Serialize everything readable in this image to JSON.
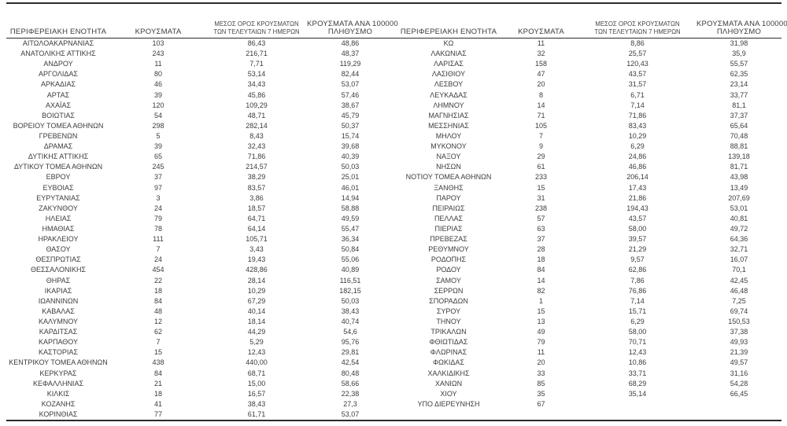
{
  "table": {
    "headers": {
      "region": "ΠΕΡΙΦΕΡΕΙΑΚΗ ΕΝΟΤΗΤΑ",
      "cases": "ΚΡΟΥΣΜΑΤΑ",
      "avg7_line1": "ΜΕΣΟΣ ΟΡΟΣ ΚΡΟΥΣΜΑΤΩΝ",
      "avg7_line2": "ΤΩΝ ΤΕΛΕΥΤΑΙΩΝ 7 ΗΜΕΡΩΝ",
      "per100k_line1": "ΚΡΟΥΣΜΑΤΑ ΑΝΑ 100000",
      "per100k_line2": "ΠΛΗΘΥΣΜΟ"
    },
    "left_rows": [
      [
        "ΑΙΤΩΛΟΑΚΑΡΝΑΝΙΑΣ",
        "103",
        "86,43",
        "48,86"
      ],
      [
        "ΑΝΑΤΟΛΙΚΗΣ ΑΤΤΙΚΗΣ",
        "243",
        "216,71",
        "48,37"
      ],
      [
        "ΑΝΔΡΟΥ",
        "11",
        "7,71",
        "119,29"
      ],
      [
        "ΑΡΓΟΛΙΔΑΣ",
        "80",
        "53,14",
        "82,44"
      ],
      [
        "ΑΡΚΑΔΙΑΣ",
        "46",
        "34,43",
        "53,07"
      ],
      [
        "ΑΡΤΑΣ",
        "39",
        "45,86",
        "57,46"
      ],
      [
        "ΑΧΑΪΑΣ",
        "120",
        "109,29",
        "38,67"
      ],
      [
        "ΒΟΙΩΤΙΑΣ",
        "54",
        "48,71",
        "45,79"
      ],
      [
        "ΒΟΡΕΙΟΥ ΤΟΜΕΑ ΑΘΗΝΩΝ",
        "298",
        "282,14",
        "50,37"
      ],
      [
        "ΓΡΕΒΕΝΩΝ",
        "5",
        "8,43",
        "15,74"
      ],
      [
        "ΔΡΑΜΑΣ",
        "39",
        "32,43",
        "39,68"
      ],
      [
        "ΔΥΤΙΚΗΣ ΑΤΤΙΚΗΣ",
        "65",
        "71,86",
        "40,39"
      ],
      [
        "ΔΥΤΙΚΟΥ ΤΟΜΕΑ ΑΘΗΝΩΝ",
        "245",
        "214,57",
        "50,03"
      ],
      [
        "ΕΒΡΟΥ",
        "37",
        "38,29",
        "25,01"
      ],
      [
        "ΕΥΒΟΙΑΣ",
        "97",
        "83,57",
        "46,01"
      ],
      [
        "ΕΥΡΥΤΑΝΙΑΣ",
        "3",
        "3,86",
        "14,94"
      ],
      [
        "ΖΑΚΥΝΘΟΥ",
        "24",
        "18,57",
        "58,88"
      ],
      [
        "ΗΛΕΙΑΣ",
        "79",
        "64,71",
        "49,59"
      ],
      [
        "ΗΜΑΘΙΑΣ",
        "78",
        "64,14",
        "55,47"
      ],
      [
        "ΗΡΑΚΛΕΙΟΥ",
        "111",
        "105,71",
        "36,34"
      ],
      [
        "ΘΑΣΟΥ",
        "7",
        "3,43",
        "50,84"
      ],
      [
        "ΘΕΣΠΡΩΤΙΑΣ",
        "24",
        "19,43",
        "55,06"
      ],
      [
        "ΘΕΣΣΑΛΟΝΙΚΗΣ",
        "454",
        "428,86",
        "40,89"
      ],
      [
        "ΘΗΡΑΣ",
        "22",
        "28,14",
        "116,51"
      ],
      [
        "ΙΚΑΡΙΑΣ",
        "18",
        "10,29",
        "182,15"
      ],
      [
        "ΙΩΑΝΝΙΝΩΝ",
        "84",
        "67,29",
        "50,03"
      ],
      [
        "ΚΑΒΑΛΑΣ",
        "48",
        "40,14",
        "38,43"
      ],
      [
        "ΚΑΛΥΜΝΟΥ",
        "12",
        "18,14",
        "40,74"
      ],
      [
        "ΚΑΡΔΙΤΣΑΣ",
        "62",
        "44,29",
        "54,6"
      ],
      [
        "ΚΑΡΠΑΘΟΥ",
        "7",
        "5,29",
        "95,76"
      ],
      [
        "ΚΑΣΤΟΡΙΑΣ",
        "15",
        "12,43",
        "29,81"
      ],
      [
        "ΚΕΝΤΡΙΚΟΥ ΤΟΜΕΑ ΑΘΗΝΩΝ",
        "438",
        "440,00",
        "42,54"
      ],
      [
        "ΚΕΡΚΥΡΑΣ",
        "84",
        "68,71",
        "80,48"
      ],
      [
        "ΚΕΦΑΛΛΗΝΙΑΣ",
        "21",
        "15,00",
        "58,66"
      ],
      [
        "ΚΙΛΚΙΣ",
        "18",
        "16,57",
        "22,38"
      ],
      [
        "ΚΟΖΑΝΗΣ",
        "41",
        "38,43",
        "27,3"
      ],
      [
        "ΚΟΡΙΝΘΙΑΣ",
        "77",
        "61,71",
        "53,07"
      ]
    ],
    "right_rows": [
      [
        "ΚΩ",
        "11",
        "8,86",
        "31,98"
      ],
      [
        "ΛΑΚΩΝΙΑΣ",
        "32",
        "25,57",
        "35,9"
      ],
      [
        "ΛΑΡΙΣΑΣ",
        "158",
        "120,43",
        "55,57"
      ],
      [
        "ΛΑΣΙΘΙΟΥ",
        "47",
        "43,57",
        "62,35"
      ],
      [
        "ΛΕΣΒΟΥ",
        "20",
        "31,57",
        "23,14"
      ],
      [
        "ΛΕΥΚΑΔΑΣ",
        "8",
        "6,71",
        "33,77"
      ],
      [
        "ΛΗΜΝΟΥ",
        "14",
        "7,14",
        "81,1"
      ],
      [
        "ΜΑΓΝΗΣΙΑΣ",
        "71",
        "71,86",
        "37,37"
      ],
      [
        "ΜΕΣΣΗΝΙΑΣ",
        "105",
        "83,43",
        "65,64"
      ],
      [
        "ΜΗΛΟΥ",
        "7",
        "10,29",
        "70,48"
      ],
      [
        "ΜΥΚΟΝΟΥ",
        "9",
        "6,29",
        "88,81"
      ],
      [
        "ΝΑΞΟΥ",
        "29",
        "24,86",
        "139,18"
      ],
      [
        "ΝΗΣΩΝ",
        "61",
        "46,86",
        "81,71"
      ],
      [
        "ΝΟΤΙΟΥ ΤΟΜΕΑ ΑΘΗΝΩΝ",
        "233",
        "206,14",
        "43,98"
      ],
      [
        "ΞΑΝΘΗΣ",
        "15",
        "17,43",
        "13,49"
      ],
      [
        "ΠΑΡΟΥ",
        "31",
        "21,86",
        "207,69"
      ],
      [
        "ΠΕΙΡΑΙΩΣ",
        "238",
        "194,43",
        "53,01"
      ],
      [
        "ΠΕΛΛΑΣ",
        "57",
        "43,57",
        "40,81"
      ],
      [
        "ΠΙΕΡΙΑΣ",
        "63",
        "58,00",
        "49,72"
      ],
      [
        "ΠΡΕΒΕΖΑΣ",
        "37",
        "39,57",
        "64,36"
      ],
      [
        "ΡΕΘΥΜΝΟΥ",
        "28",
        "21,29",
        "32,71"
      ],
      [
        "ΡΟΔΟΠΗΣ",
        "18",
        "9,57",
        "16,07"
      ],
      [
        "ΡΟΔΟΥ",
        "84",
        "62,86",
        "70,1"
      ],
      [
        "ΣΑΜΟΥ",
        "14",
        "7,86",
        "42,45"
      ],
      [
        "ΣΕΡΡΩΝ",
        "82",
        "76,86",
        "46,48"
      ],
      [
        "ΣΠΟΡΑΔΩΝ",
        "1",
        "7,14",
        "7,25"
      ],
      [
        "ΣΥΡΟΥ",
        "15",
        "15,71",
        "69,74"
      ],
      [
        "ΤΗΝΟΥ",
        "13",
        "6,29",
        "150,53"
      ],
      [
        "ΤΡΙΚΑΛΩΝ",
        "49",
        "58,00",
        "37,38"
      ],
      [
        "ΦΘΙΩΤΙΔΑΣ",
        "79",
        "70,71",
        "49,93"
      ],
      [
        "ΦΛΩΡΙΝΑΣ",
        "11",
        "12,43",
        "21,39"
      ],
      [
        "ΦΩΚΙΔΑΣ",
        "20",
        "10,86",
        "49,57"
      ],
      [
        "ΧΑΛΚΙΔΙΚΗΣ",
        "33",
        "33,71",
        "31,16"
      ],
      [
        "ΧΑΝΙΩΝ",
        "85",
        "68,29",
        "54,28"
      ],
      [
        "ΧΙΟΥ",
        "35",
        "35,14",
        "66,45"
      ],
      [
        "ΥΠΟ ΔΙΕΡΕΥΝΗΣΗ",
        "67",
        "",
        ""
      ]
    ],
    "colors": {
      "text": "#3c3c3c",
      "rule": "#2b2b2b",
      "background": "#ffffff"
    }
  }
}
